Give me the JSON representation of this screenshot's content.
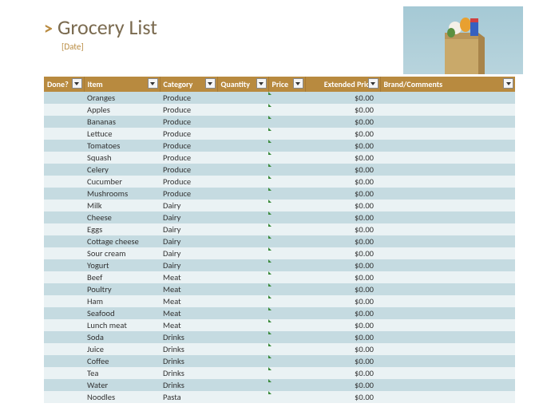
{
  "header": {
    "title": "Grocery List",
    "date_placeholder": "[Date]"
  },
  "columns": [
    {
      "key": "done",
      "label": "Done?",
      "class": "col-done"
    },
    {
      "key": "item",
      "label": "Item",
      "class": "col-item"
    },
    {
      "key": "category",
      "label": "Category",
      "class": "col-cat"
    },
    {
      "key": "quantity",
      "label": "Quantity",
      "class": "col-qty"
    },
    {
      "key": "price",
      "label": "Price",
      "class": "col-price"
    },
    {
      "key": "extended",
      "label": "Extended Price",
      "class": "col-ext"
    },
    {
      "key": "brand",
      "label": "Brand/Comments",
      "class": "col-brand"
    }
  ],
  "rows": [
    {
      "done": "",
      "item": "Oranges",
      "category": "Produce",
      "quantity": "",
      "price": "",
      "extended": "$0.00",
      "brand": ""
    },
    {
      "done": "",
      "item": "Apples",
      "category": "Produce",
      "quantity": "",
      "price": "",
      "extended": "$0.00",
      "brand": ""
    },
    {
      "done": "",
      "item": "Bananas",
      "category": "Produce",
      "quantity": "",
      "price": "",
      "extended": "$0.00",
      "brand": ""
    },
    {
      "done": "",
      "item": "Lettuce",
      "category": "Produce",
      "quantity": "",
      "price": "",
      "extended": "$0.00",
      "brand": ""
    },
    {
      "done": "",
      "item": "Tomatoes",
      "category": "Produce",
      "quantity": "",
      "price": "",
      "extended": "$0.00",
      "brand": ""
    },
    {
      "done": "",
      "item": "Squash",
      "category": "Produce",
      "quantity": "",
      "price": "",
      "extended": "$0.00",
      "brand": ""
    },
    {
      "done": "",
      "item": "Celery",
      "category": "Produce",
      "quantity": "",
      "price": "",
      "extended": "$0.00",
      "brand": ""
    },
    {
      "done": "",
      "item": "Cucumber",
      "category": "Produce",
      "quantity": "",
      "price": "",
      "extended": "$0.00",
      "brand": ""
    },
    {
      "done": "",
      "item": "Mushrooms",
      "category": "Produce",
      "quantity": "",
      "price": "",
      "extended": "$0.00",
      "brand": ""
    },
    {
      "done": "",
      "item": "Milk",
      "category": "Dairy",
      "quantity": "",
      "price": "",
      "extended": "$0.00",
      "brand": ""
    },
    {
      "done": "",
      "item": "Cheese",
      "category": "Dairy",
      "quantity": "",
      "price": "",
      "extended": "$0.00",
      "brand": ""
    },
    {
      "done": "",
      "item": "Eggs",
      "category": "Dairy",
      "quantity": "",
      "price": "",
      "extended": "$0.00",
      "brand": ""
    },
    {
      "done": "",
      "item": "Cottage cheese",
      "category": "Dairy",
      "quantity": "",
      "price": "",
      "extended": "$0.00",
      "brand": ""
    },
    {
      "done": "",
      "item": "Sour cream",
      "category": "Dairy",
      "quantity": "",
      "price": "",
      "extended": "$0.00",
      "brand": ""
    },
    {
      "done": "",
      "item": "Yogurt",
      "category": "Dairy",
      "quantity": "",
      "price": "",
      "extended": "$0.00",
      "brand": ""
    },
    {
      "done": "",
      "item": "Beef",
      "category": "Meat",
      "quantity": "",
      "price": "",
      "extended": "$0.00",
      "brand": ""
    },
    {
      "done": "",
      "item": "Poultry",
      "category": "Meat",
      "quantity": "",
      "price": "",
      "extended": "$0.00",
      "brand": ""
    },
    {
      "done": "",
      "item": "Ham",
      "category": "Meat",
      "quantity": "",
      "price": "",
      "extended": "$0.00",
      "brand": ""
    },
    {
      "done": "",
      "item": "Seafood",
      "category": "Meat",
      "quantity": "",
      "price": "",
      "extended": "$0.00",
      "brand": ""
    },
    {
      "done": "",
      "item": "Lunch meat",
      "category": "Meat",
      "quantity": "",
      "price": "",
      "extended": "$0.00",
      "brand": ""
    },
    {
      "done": "",
      "item": "Soda",
      "category": "Drinks",
      "quantity": "",
      "price": "",
      "extended": "$0.00",
      "brand": ""
    },
    {
      "done": "",
      "item": "Juice",
      "category": "Drinks",
      "quantity": "",
      "price": "",
      "extended": "$0.00",
      "brand": ""
    },
    {
      "done": "",
      "item": "Coffee",
      "category": "Drinks",
      "quantity": "",
      "price": "",
      "extended": "$0.00",
      "brand": ""
    },
    {
      "done": "",
      "item": "Tea",
      "category": "Drinks",
      "quantity": "",
      "price": "",
      "extended": "$0.00",
      "brand": ""
    },
    {
      "done": "",
      "item": "Water",
      "category": "Drinks",
      "quantity": "",
      "price": "",
      "extended": "$0.00",
      "brand": ""
    },
    {
      "done": "",
      "item": "Noodles",
      "category": "Pasta",
      "quantity": "",
      "price": "",
      "extended": "$0.00",
      "brand": ""
    }
  ],
  "style": {
    "header_bg": "#b88a3f",
    "row_odd": "#c5dbe1",
    "row_even": "#eaf2f4",
    "title_color": "#7a6a4f",
    "accent": "#b88a3f"
  }
}
